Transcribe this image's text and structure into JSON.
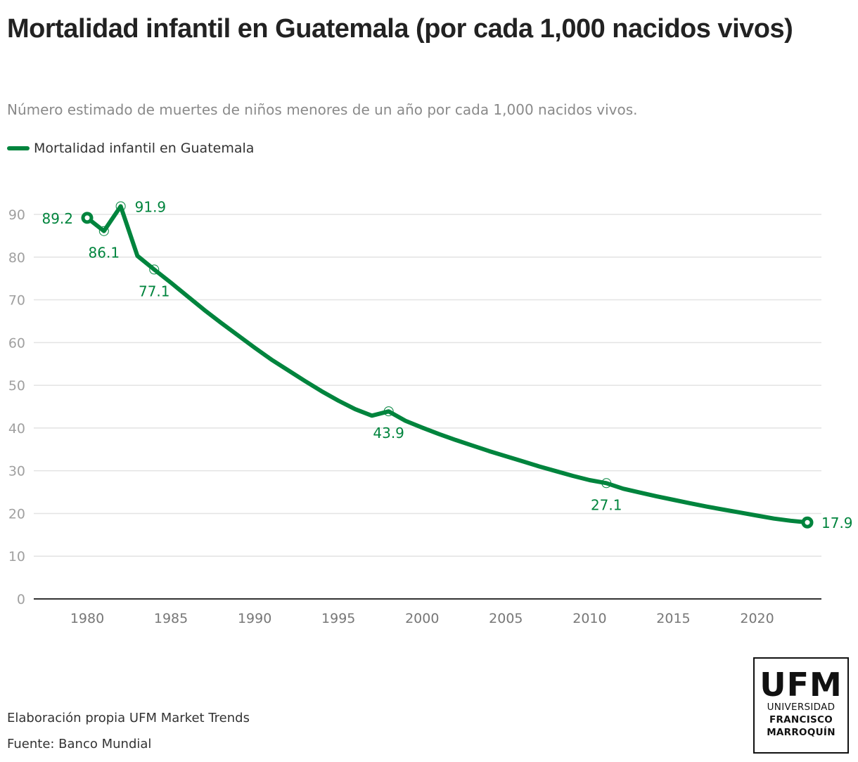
{
  "header": {
    "title": "Mortalidad infantil en Guatemala (por cada 1,000 nacidos vivos)",
    "subtitle": "Número estimado de muertes de niños menores de un año por cada 1,000 nacidos vivos."
  },
  "legend": {
    "label": "Mortalidad infantil en Guatemala",
    "color": "#00843d"
  },
  "footer": {
    "credit": "Elaboración propia UFM Market Trends",
    "source": "Fuente: Banco Mundial"
  },
  "logo": {
    "acronym": "UFM",
    "line1": "UNIVERSIDAD",
    "line2": "FRANCISCO",
    "line3": "MARROQUÍN"
  },
  "chart_data": {
    "type": "line",
    "title": "Mortalidad infantil en Guatemala (por cada 1,000 nacidos vivos)",
    "xlabel": "",
    "ylabel": "",
    "xlim": [
      1977,
      2024
    ],
    "ylim": [
      0,
      90
    ],
    "grid": true,
    "legend_position": "top-left",
    "x_ticks": [
      1980,
      1985,
      1990,
      1995,
      2000,
      2005,
      2010,
      2015,
      2020
    ],
    "y_ticks": [
      0,
      10,
      20,
      30,
      40,
      50,
      60,
      70,
      80,
      90
    ],
    "series": [
      {
        "name": "Mortalidad infantil en Guatemala",
        "color": "#00843d",
        "x": [
          1980,
          1981,
          1982,
          1983,
          1984,
          1985,
          1986,
          1987,
          1988,
          1989,
          1990,
          1991,
          1992,
          1993,
          1994,
          1995,
          1996,
          1997,
          1998,
          1999,
          2000,
          2001,
          2002,
          2003,
          2004,
          2005,
          2006,
          2007,
          2008,
          2009,
          2010,
          2011,
          2012,
          2013,
          2014,
          2015,
          2016,
          2017,
          2018,
          2019,
          2020,
          2021,
          2022,
          2023
        ],
        "values": [
          89.2,
          86.1,
          91.9,
          80.3,
          77.1,
          74.0,
          70.8,
          67.6,
          64.6,
          61.7,
          58.8,
          56.0,
          53.5,
          51.0,
          48.6,
          46.4,
          44.4,
          42.9,
          43.9,
          41.7,
          40.1,
          38.6,
          37.2,
          35.9,
          34.6,
          33.4,
          32.2,
          31.0,
          29.9,
          28.8,
          27.8,
          27.1,
          25.8,
          24.9,
          24.0,
          23.2,
          22.4,
          21.6,
          20.9,
          20.2,
          19.5,
          18.8,
          18.3,
          17.9
        ]
      }
    ],
    "annotations": [
      {
        "x": 1980,
        "value": 89.2,
        "label": "89.2",
        "marker": "filled-ring",
        "pos": "left"
      },
      {
        "x": 1981,
        "value": 86.1,
        "label": "86.1",
        "marker": "ring",
        "pos": "below"
      },
      {
        "x": 1982,
        "value": 91.9,
        "label": "91.9",
        "marker": "ring",
        "pos": "right"
      },
      {
        "x": 1984,
        "value": 77.1,
        "label": "77.1",
        "marker": "ring",
        "pos": "below"
      },
      {
        "x": 1998,
        "value": 43.9,
        "label": "43.9",
        "marker": "ring",
        "pos": "below"
      },
      {
        "x": 2011,
        "value": 27.1,
        "label": "27.1",
        "marker": "ring",
        "pos": "below"
      },
      {
        "x": 2023,
        "value": 17.9,
        "label": "17.9",
        "marker": "filled-ring",
        "pos": "right"
      }
    ]
  }
}
